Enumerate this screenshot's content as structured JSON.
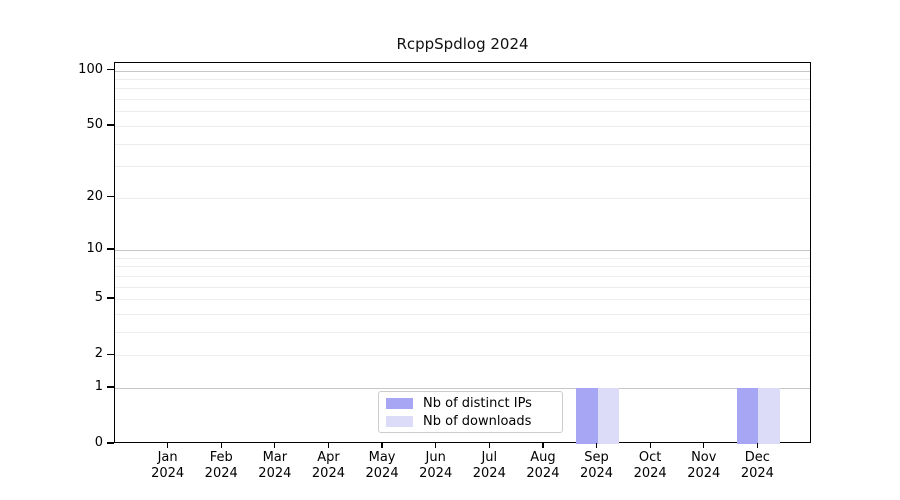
{
  "title": "RcppSpdlog 2024",
  "legend": {
    "items": [
      {
        "label": "Nb of distinct IPs",
        "color": "#a6a6f5"
      },
      {
        "label": "Nb of downloads",
        "color": "#dcdcf9"
      }
    ]
  },
  "chart_data": {
    "type": "bar",
    "title": "RcppSpdlog 2024",
    "x": [
      {
        "month": "Jan",
        "year": "2024"
      },
      {
        "month": "Feb",
        "year": "2024"
      },
      {
        "month": "Mar",
        "year": "2024"
      },
      {
        "month": "Apr",
        "year": "2024"
      },
      {
        "month": "May",
        "year": "2024"
      },
      {
        "month": "Jun",
        "year": "2024"
      },
      {
        "month": "Jul",
        "year": "2024"
      },
      {
        "month": "Aug",
        "year": "2024"
      },
      {
        "month": "Sep",
        "year": "2024"
      },
      {
        "month": "Oct",
        "year": "2024"
      },
      {
        "month": "Nov",
        "year": "2024"
      },
      {
        "month": "Dec",
        "year": "2024"
      }
    ],
    "series": [
      {
        "name": "Nb of distinct IPs",
        "color": "#a6a6f5",
        "values": [
          0,
          0,
          0,
          0,
          0,
          0,
          0,
          0,
          1,
          0,
          0,
          1
        ]
      },
      {
        "name": "Nb of downloads",
        "color": "#dcdcf9",
        "values": [
          0,
          0,
          0,
          0,
          0,
          0,
          0,
          0,
          1,
          0,
          0,
          1
        ]
      }
    ],
    "yscale": "log1p",
    "ylim": [
      0,
      110
    ],
    "ytick_labels": [
      100,
      50,
      20,
      10,
      5,
      2,
      1,
      0
    ],
    "grid_major": [
      1,
      10,
      100
    ],
    "grid_minor": [
      2,
      3,
      4,
      5,
      6,
      7,
      8,
      9,
      20,
      30,
      40,
      50,
      60,
      70,
      80,
      90
    ],
    "legend_position": "lower center",
    "colors": {
      "grid_major": "#c6c6c6",
      "grid_minor": "#ededed",
      "axis": "#000000"
    }
  }
}
